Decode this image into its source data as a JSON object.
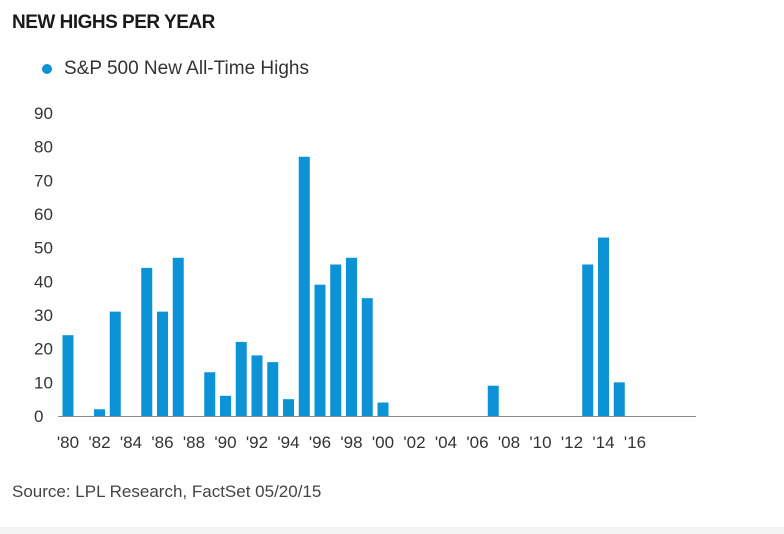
{
  "colors": {
    "bar": "#0b93d6",
    "axis": "#888888",
    "text": "#333333"
  },
  "footer": {
    "source": "Source: LPL Research, FactSet   05/20/15"
  },
  "chart_data": {
    "type": "bar",
    "title": "NEW HIGHS PER YEAR",
    "legend": {
      "position": "top-left",
      "entries": [
        "S&P 500 New All-Time Highs"
      ]
    },
    "grid": false,
    "ylim": [
      0,
      90
    ],
    "yticks": [
      0,
      10,
      20,
      30,
      40,
      50,
      60,
      70,
      80,
      90
    ],
    "xticks": [
      "'80",
      "'82",
      "'84",
      "'86",
      "'88",
      "'90",
      "'92",
      "'94",
      "'96",
      "'98",
      "'00",
      "'02",
      "'04",
      "'06",
      "'08",
      "'10",
      "'12",
      "'14",
      "'16"
    ],
    "x_start_year": 1980,
    "series": [
      {
        "name": "S&P 500 New All-Time Highs",
        "points": [
          {
            "year": 1980,
            "value": 24
          },
          {
            "year": 1982,
            "value": 2
          },
          {
            "year": 1983,
            "value": 31
          },
          {
            "year": 1985,
            "value": 44
          },
          {
            "year": 1986,
            "value": 31
          },
          {
            "year": 1987,
            "value": 47
          },
          {
            "year": 1989,
            "value": 13
          },
          {
            "year": 1990,
            "value": 6
          },
          {
            "year": 1991,
            "value": 22
          },
          {
            "year": 1992,
            "value": 18
          },
          {
            "year": 1993,
            "value": 16
          },
          {
            "year": 1994,
            "value": 5
          },
          {
            "year": 1995,
            "value": 77
          },
          {
            "year": 1996,
            "value": 39
          },
          {
            "year": 1997,
            "value": 45
          },
          {
            "year": 1998,
            "value": 47
          },
          {
            "year": 1999,
            "value": 35
          },
          {
            "year": 2000,
            "value": 4
          },
          {
            "year": 2007,
            "value": 9
          },
          {
            "year": 2013,
            "value": 45
          },
          {
            "year": 2014,
            "value": 53
          },
          {
            "year": 2015,
            "value": 10
          }
        ]
      }
    ]
  }
}
